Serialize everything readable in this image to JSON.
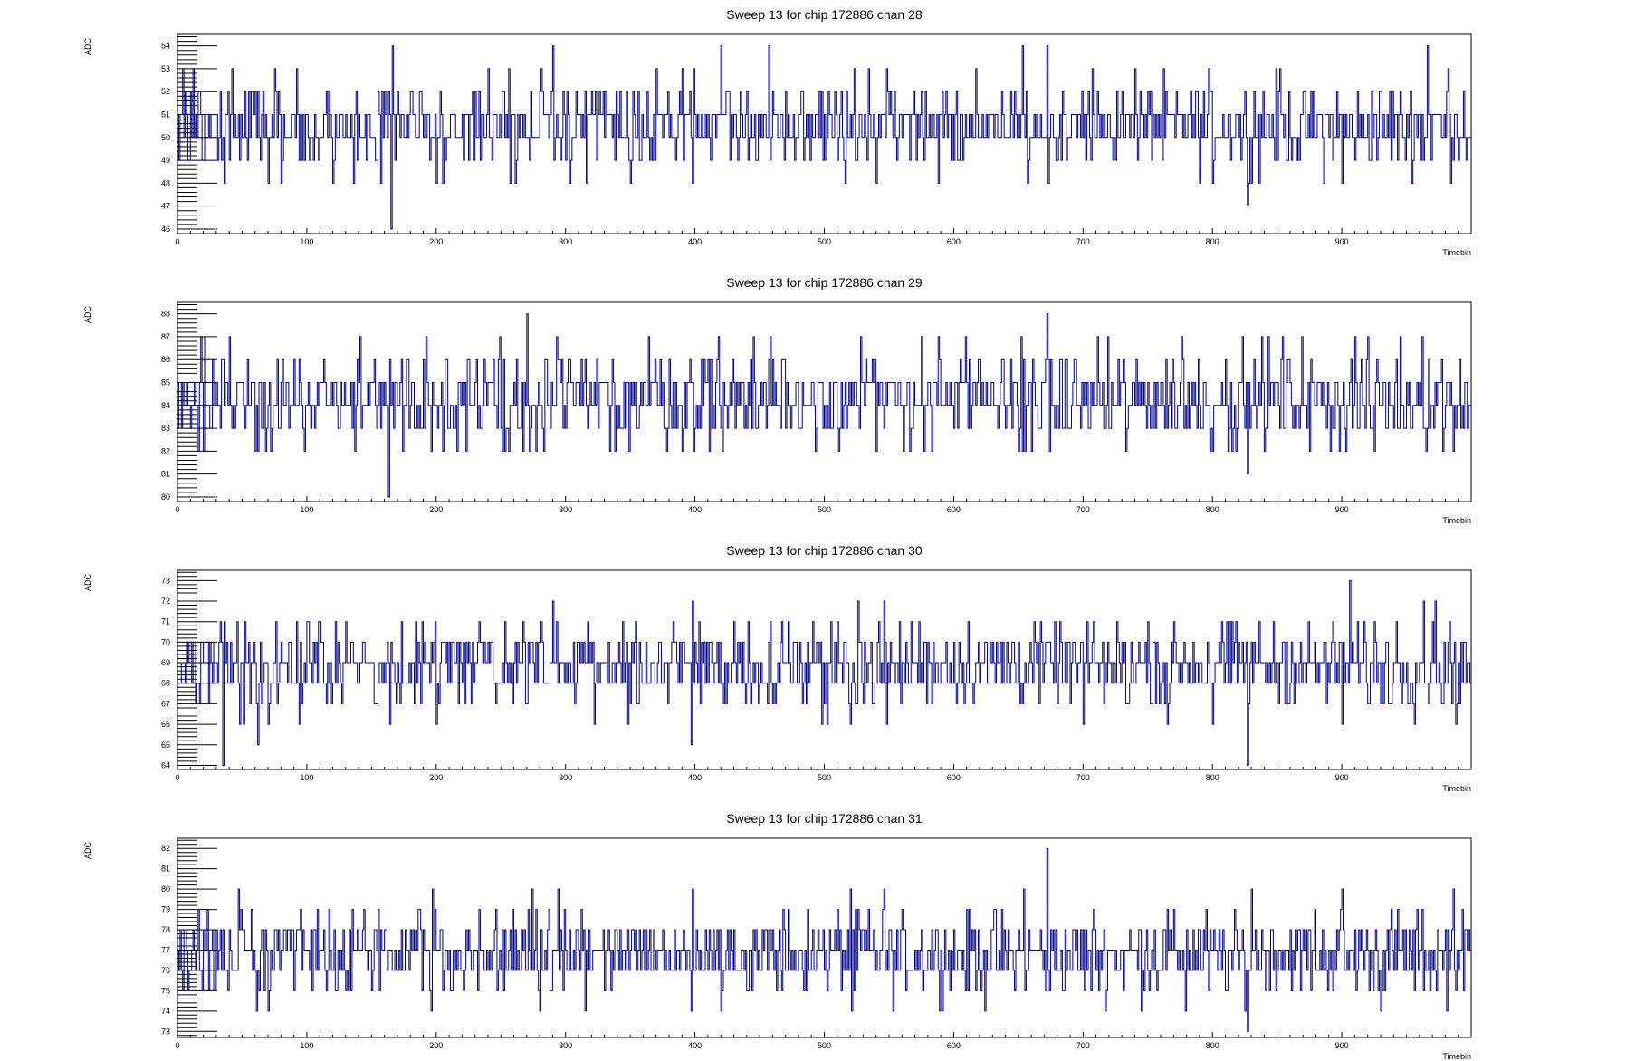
{
  "colors": {
    "line": "#00008b",
    "axes": "#000000",
    "background": "#ffffff"
  },
  "chart_data": [
    {
      "type": "line",
      "title": "Sweep 13 for chip 172886 chan 28",
      "xlabel": "Timebin",
      "ylabel": "ADC",
      "xlim": [
        0,
        1000
      ],
      "ylim": [
        45.8,
        54.5
      ],
      "xticks": [
        0,
        100,
        200,
        300,
        400,
        500,
        600,
        700,
        800,
        900
      ],
      "yticks": [
        46,
        47,
        48,
        49,
        50,
        51,
        52,
        53,
        54
      ],
      "grid": false,
      "baseline": 50.5,
      "spread": 0.9,
      "spikes": [
        [
          4,
          53
        ],
        [
          8,
          49
        ],
        [
          12,
          53
        ],
        [
          16,
          52
        ],
        [
          20,
          49
        ],
        [
          36,
          48
        ],
        [
          42,
          53
        ],
        [
          70,
          48
        ],
        [
          75,
          53
        ],
        [
          80,
          48
        ],
        [
          92,
          53
        ],
        [
          165,
          46
        ],
        [
          166,
          54
        ],
        [
          200,
          48
        ],
        [
          205,
          48
        ],
        [
          240,
          53
        ],
        [
          290,
          54
        ],
        [
          291,
          49
        ],
        [
          316,
          48
        ],
        [
          350,
          48
        ],
        [
          398,
          48
        ],
        [
          399,
          53
        ],
        [
          420,
          54
        ],
        [
          457,
          54
        ],
        [
          540,
          48
        ],
        [
          548,
          53
        ],
        [
          588,
          48
        ],
        [
          617,
          53
        ],
        [
          653,
          54
        ],
        [
          672,
          54
        ],
        [
          673,
          48
        ],
        [
          740,
          53
        ],
        [
          800,
          48
        ],
        [
          827,
          47
        ],
        [
          852,
          53
        ],
        [
          900,
          48
        ],
        [
          966,
          54
        ],
        [
          982,
          53
        ]
      ],
      "seed": 28
    },
    {
      "type": "line",
      "title": "Sweep 13 for chip 172886 chan 29",
      "xlabel": "Timebin",
      "ylabel": "ADC",
      "xlim": [
        0,
        1000
      ],
      "ylim": [
        79.8,
        88.5
      ],
      "xticks": [
        0,
        100,
        200,
        300,
        400,
        500,
        600,
        700,
        800,
        900
      ],
      "yticks": [
        80,
        81,
        82,
        83,
        84,
        85,
        86,
        87,
        88
      ],
      "grid": false,
      "baseline": 84.3,
      "spread": 1.0,
      "spikes": [
        [
          16,
          82
        ],
        [
          18,
          87
        ],
        [
          40,
          87
        ],
        [
          60,
          82
        ],
        [
          72,
          82
        ],
        [
          163,
          80
        ],
        [
          164,
          86
        ],
        [
          192,
          87
        ],
        [
          196,
          82
        ],
        [
          253,
          82
        ],
        [
          270,
          88
        ],
        [
          272,
          82
        ],
        [
          293,
          87
        ],
        [
          364,
          87
        ],
        [
          390,
          82
        ],
        [
          418,
          87
        ],
        [
          445,
          87
        ],
        [
          458,
          87
        ],
        [
          528,
          87
        ],
        [
          540,
          82
        ],
        [
          575,
          87
        ],
        [
          652,
          87
        ],
        [
          655,
          82
        ],
        [
          672,
          88
        ],
        [
          674,
          82
        ],
        [
          776,
          87
        ],
        [
          800,
          82
        ],
        [
          827,
          81
        ],
        [
          869,
          87
        ],
        [
          875,
          82
        ],
        [
          910,
          87
        ],
        [
          925,
          82
        ],
        [
          962,
          87
        ],
        [
          986,
          82
        ]
      ],
      "seed": 29
    },
    {
      "type": "line",
      "title": "Sweep 13 for chip 172886 chan 30",
      "xlabel": "Timebin",
      "ylabel": "ADC",
      "xlim": [
        0,
        1000
      ],
      "ylim": [
        63.8,
        73.5
      ],
      "xticks": [
        0,
        100,
        200,
        300,
        400,
        500,
        600,
        700,
        800,
        900
      ],
      "yticks": [
        64,
        65,
        66,
        67,
        68,
        69,
        70,
        71,
        72,
        73
      ],
      "grid": false,
      "baseline": 68.9,
      "spread": 1.0,
      "spikes": [
        [
          12,
          70
        ],
        [
          14,
          67
        ],
        [
          35,
          64
        ],
        [
          36,
          71
        ],
        [
          62,
          65
        ],
        [
          70,
          66
        ],
        [
          100,
          71
        ],
        [
          164,
          66
        ],
        [
          200,
          66
        ],
        [
          290,
          72
        ],
        [
          322,
          66
        ],
        [
          348,
          66
        ],
        [
          397,
          65
        ],
        [
          398,
          72
        ],
        [
          520,
          66
        ],
        [
          526,
          72
        ],
        [
          546,
          72
        ],
        [
          548,
          66
        ],
        [
          700,
          66
        ],
        [
          765,
          66
        ],
        [
          800,
          66
        ],
        [
          827,
          64
        ],
        [
          900,
          66
        ],
        [
          906,
          73
        ],
        [
          963,
          72
        ],
        [
          972,
          72
        ],
        [
          988,
          66
        ]
      ],
      "seed": 30
    },
    {
      "type": "line",
      "title": "Sweep 13 for chip 172886 chan 31",
      "xlabel": "Timebin",
      "ylabel": "ADC",
      "xlim": [
        0,
        1000
      ],
      "ylim": [
        72.7,
        82.5
      ],
      "xticks": [
        0,
        100,
        200,
        300,
        400,
        500,
        600,
        700,
        800,
        900
      ],
      "yticks": [
        73,
        74,
        75,
        76,
        77,
        78,
        79,
        80,
        81,
        82
      ],
      "grid": false,
      "baseline": 76.8,
      "spread": 1.0,
      "spikes": [
        [
          16,
          79
        ],
        [
          19,
          75
        ],
        [
          47,
          80
        ],
        [
          61,
          74
        ],
        [
          196,
          74
        ],
        [
          197,
          80
        ],
        [
          274,
          80
        ],
        [
          294,
          80
        ],
        [
          315,
          74
        ],
        [
          397,
          74
        ],
        [
          398,
          80
        ],
        [
          520,
          80
        ],
        [
          521,
          74
        ],
        [
          546,
          80
        ],
        [
          624,
          74
        ],
        [
          654,
          80
        ],
        [
          672,
          82
        ],
        [
          674,
          75
        ],
        [
          779,
          74
        ],
        [
          827,
          73
        ],
        [
          830,
          80
        ],
        [
          900,
          80
        ],
        [
          930,
          74
        ],
        [
          986,
          80
        ]
      ],
      "seed": 31
    }
  ]
}
